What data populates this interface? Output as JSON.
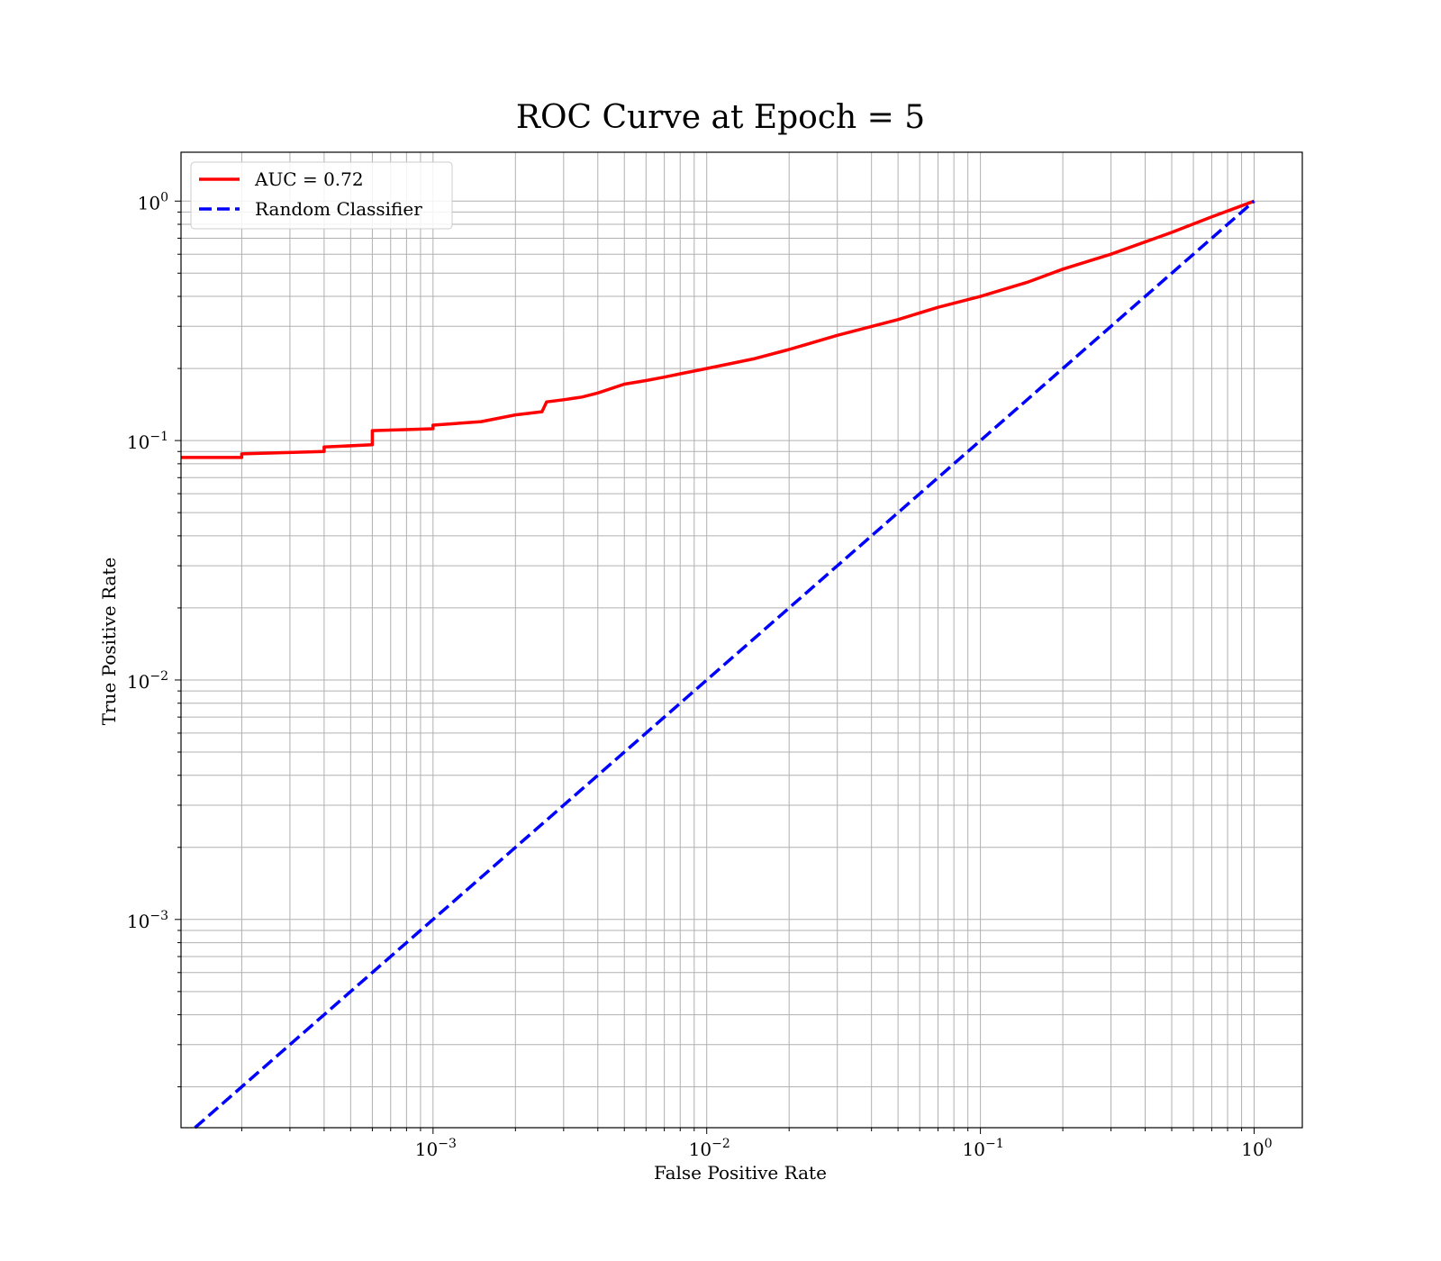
{
  "chart_data": {
    "type": "line",
    "title": "ROC Curve at Epoch = 5",
    "xlabel": "False Positive Rate",
    "ylabel": "True Positive Rate",
    "xscale": "log",
    "yscale": "log",
    "xlim": [
      0.00012,
      1.5
    ],
    "ylim": [
      0.000135,
      1.6
    ],
    "grid": "major-and-minor",
    "legend_position": "upper-left",
    "x_ticks": [
      {
        "value": 0.001,
        "base": "10",
        "exp": "−3"
      },
      {
        "value": 0.01,
        "base": "10",
        "exp": "−2"
      },
      {
        "value": 0.1,
        "base": "10",
        "exp": "−1"
      },
      {
        "value": 1,
        "base": "10",
        "exp": "0"
      }
    ],
    "y_ticks": [
      {
        "value": 0.001,
        "base": "10",
        "exp": "−3"
      },
      {
        "value": 0.01,
        "base": "10",
        "exp": "−2"
      },
      {
        "value": 0.1,
        "base": "10",
        "exp": "−1"
      },
      {
        "value": 1,
        "base": "10",
        "exp": "0"
      }
    ],
    "series": [
      {
        "name": "AUC = 0.72",
        "color": "#ff0000",
        "style": "solid",
        "x": [
          0.00012,
          0.0002,
          0.0002,
          0.0004,
          0.0004,
          0.0006,
          0.0006,
          0.001,
          0.001,
          0.0015,
          0.002,
          0.0025,
          0.0026,
          0.003,
          0.0035,
          0.004,
          0.005,
          0.006,
          0.007,
          0.008,
          0.01,
          0.015,
          0.02,
          0.03,
          0.05,
          0.07,
          0.1,
          0.15,
          0.2,
          0.3,
          0.5,
          0.7,
          1.0
        ],
        "y": [
          0.085,
          0.085,
          0.088,
          0.09,
          0.094,
          0.096,
          0.11,
          0.112,
          0.116,
          0.12,
          0.128,
          0.132,
          0.145,
          0.148,
          0.152,
          0.158,
          0.172,
          0.178,
          0.184,
          0.19,
          0.2,
          0.22,
          0.24,
          0.275,
          0.32,
          0.36,
          0.4,
          0.46,
          0.52,
          0.6,
          0.74,
          0.86,
          1.0
        ]
      },
      {
        "name": "Random Classifier",
        "color": "#0000ff",
        "style": "dashed",
        "x": [
          0.000135,
          1.0
        ],
        "y": [
          0.000135,
          1.0
        ]
      }
    ]
  }
}
